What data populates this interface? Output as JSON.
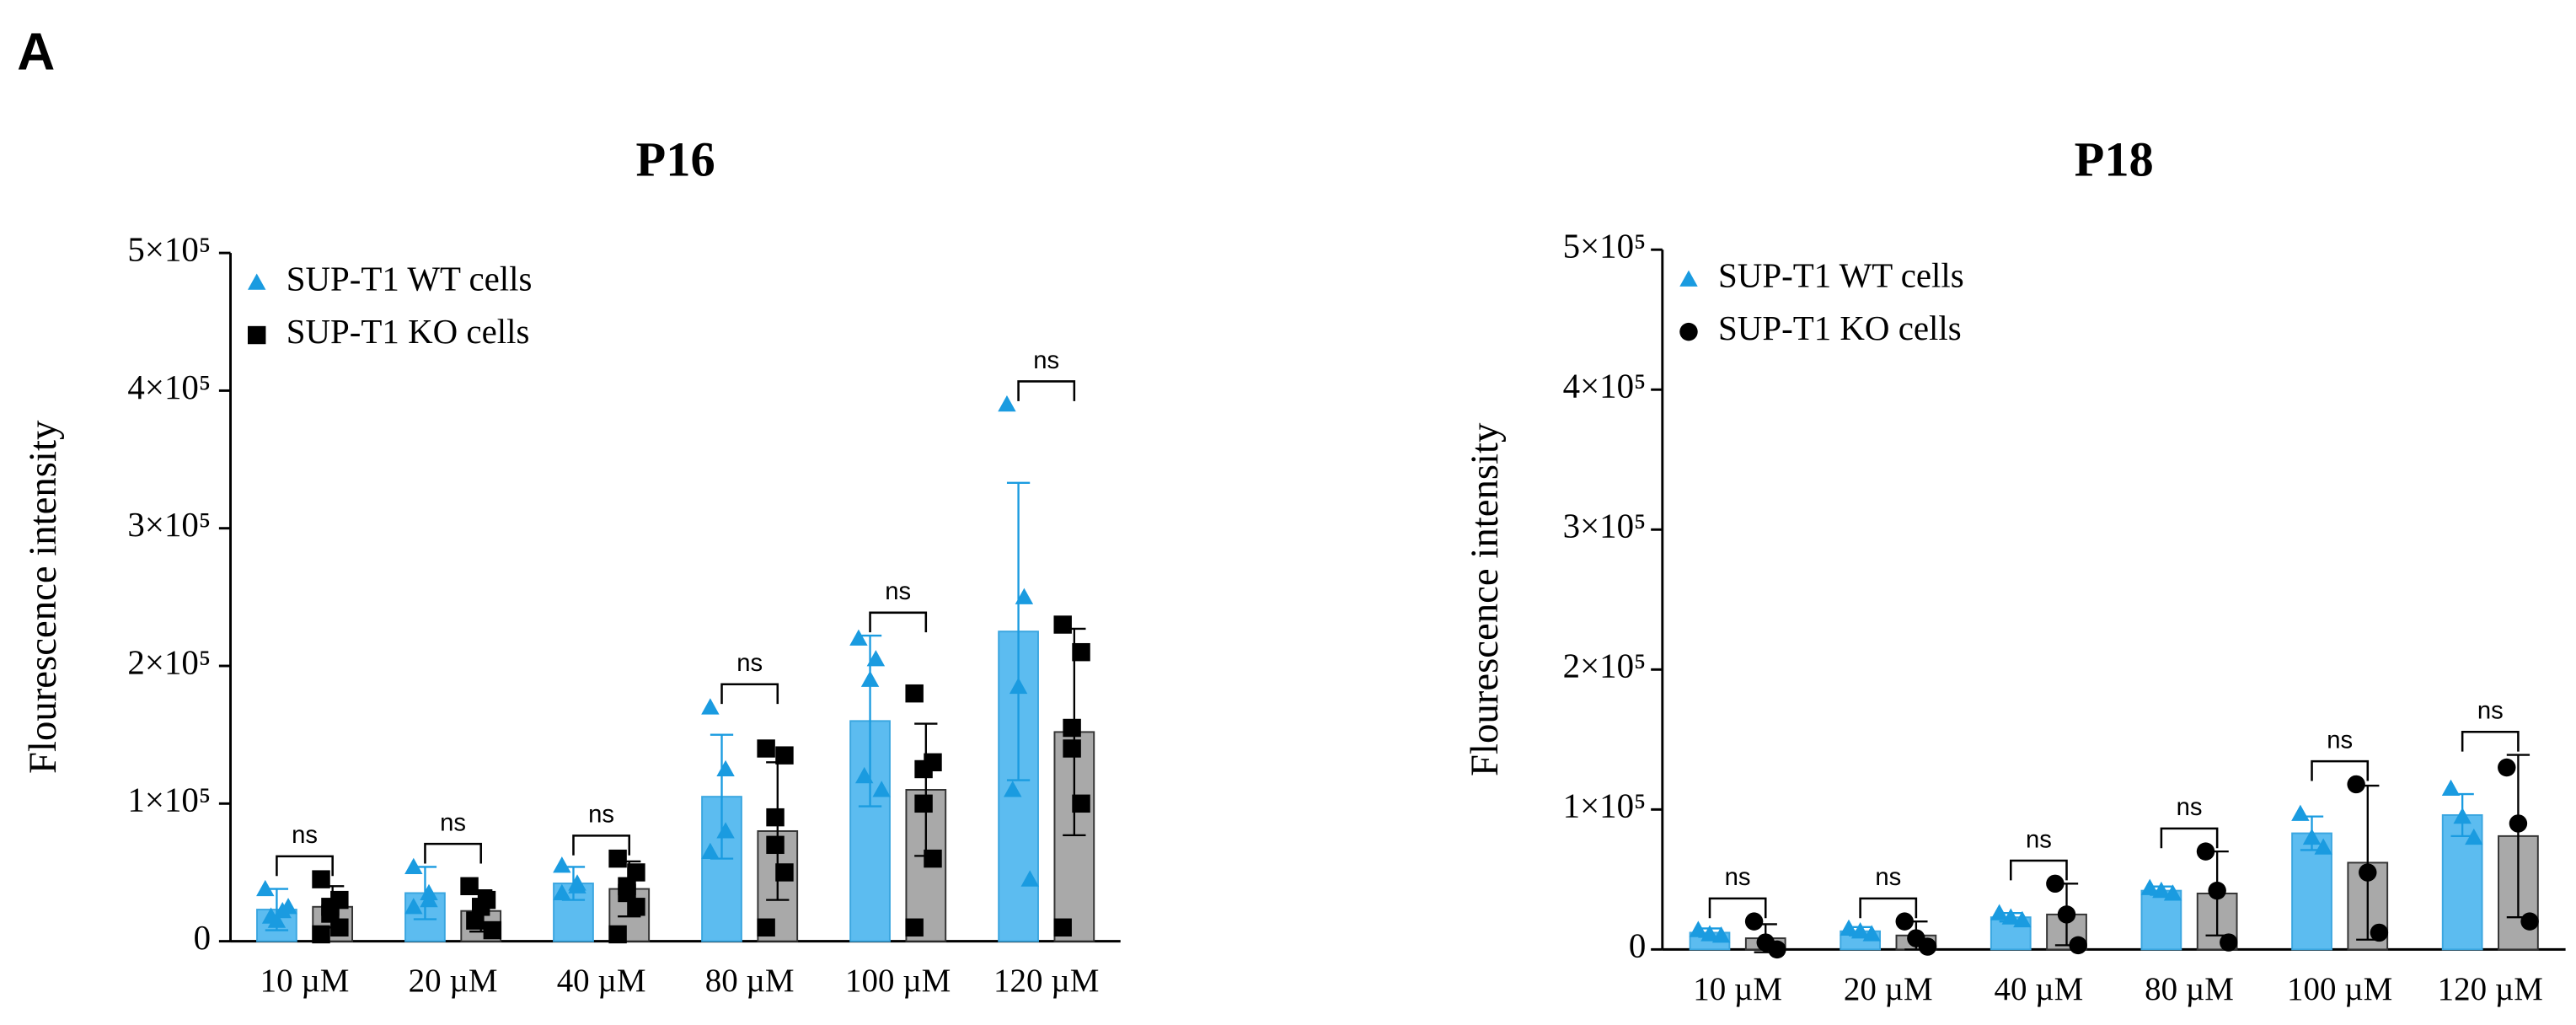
{
  "panel_label": "A",
  "chart_data": [
    {
      "type": "bar",
      "title": "P16",
      "y_label": "Flourescence intensity",
      "categories": [
        "10 µM",
        "20 µM",
        "40 µM",
        "80 µM",
        "100 µM",
        "120 µM"
      ],
      "ylim": [
        0,
        500000
      ],
      "yticks": [
        0,
        {
          "value": 100000,
          "label": "1×10⁵"
        },
        {
          "value": 200000,
          "label": "2×10⁵"
        },
        {
          "value": 300000,
          "label": "3×10⁵"
        },
        {
          "value": 400000,
          "label": "4×10⁵"
        },
        {
          "value": 500000,
          "label": "5×10⁵"
        }
      ],
      "annotations": [
        "ns",
        "ns",
        "ns",
        "ns",
        "ns",
        "ns"
      ],
      "legend": "upper left",
      "series": [
        {
          "name": "SUP-T1 WT cells",
          "color": "#5cbcf0",
          "point_color": "#1a9be0",
          "marker": "triangle",
          "values": [
            23000,
            35000,
            42000,
            105000,
            160000,
            225000
          ],
          "errors": [
            15000,
            19000,
            12000,
            45000,
            62000,
            108000
          ],
          "points": [
            [
              38000,
              22000,
              15000,
              18000,
              25000
            ],
            [
              54000,
              35000,
              30000,
              25000
            ],
            [
              55000,
              42000,
              40000,
              35000
            ],
            [
              170000,
              125000,
              80000,
              65000
            ],
            [
              220000,
              205000,
              190000,
              120000,
              110000
            ],
            [
              390000,
              250000,
              185000,
              110000,
              45000
            ]
          ]
        },
        {
          "name": "SUP-T1 KO cells",
          "color": "#a9a9a9",
          "point_color": "#000000",
          "marker": "square",
          "values": [
            25000,
            22000,
            38000,
            80000,
            110000,
            152000
          ],
          "errors": [
            15000,
            15000,
            20000,
            50000,
            48000,
            75000
          ],
          "points": [
            [
              45000,
              30000,
              25000,
              20000,
              10000,
              5000
            ],
            [
              40000,
              30000,
              25000,
              15000,
              8000
            ],
            [
              60000,
              50000,
              40000,
              35000,
              25000,
              5000
            ],
            [
              140000,
              135000,
              90000,
              70000,
              50000,
              10000
            ],
            [
              180000,
              130000,
              125000,
              100000,
              60000,
              10000
            ],
            [
              230000,
              210000,
              155000,
              140000,
              100000,
              10000
            ]
          ]
        }
      ]
    },
    {
      "type": "bar",
      "title": "P18",
      "y_label": "Flourescence intensity",
      "categories": [
        "10 µM",
        "20 µM",
        "40 µM",
        "80 µM",
        "100 µM",
        "120 µM"
      ],
      "ylim": [
        0,
        500000
      ],
      "yticks": [
        0,
        {
          "value": 100000,
          "label": "1×10⁵"
        },
        {
          "value": 200000,
          "label": "2×10⁵"
        },
        {
          "value": 300000,
          "label": "3×10⁵"
        },
        {
          "value": 400000,
          "label": "4×10⁵"
        },
        {
          "value": 500000,
          "label": "5×10⁵"
        }
      ],
      "annotations": [
        "ns",
        "ns",
        "ns",
        "ns",
        "ns",
        "ns"
      ],
      "legend": "upper left",
      "series": [
        {
          "name": "SUP-T1 WT cells",
          "color": "#5cbcf0",
          "point_color": "#1a9be0",
          "marker": "triangle",
          "values": [
            12000,
            13000,
            23000,
            42000,
            83000,
            96000
          ],
          "errors": [
            3000,
            3000,
            3000,
            3000,
            12000,
            15000
          ],
          "points": [
            [
              14000,
              11000,
              10000
            ],
            [
              15000,
              13000,
              11000
            ],
            [
              26000,
              23000,
              21000
            ],
            [
              44000,
              42000,
              40000
            ],
            [
              97000,
              80000,
              73000
            ],
            [
              115000,
              95000,
              80000
            ]
          ]
        },
        {
          "name": "SUP-T1 KO cells",
          "color": "#a9a9a9",
          "point_color": "#000000",
          "marker": "circle",
          "values": [
            8000,
            10000,
            25000,
            40000,
            62000,
            81000
          ],
          "errors": [
            10000,
            10000,
            22000,
            30000,
            55000,
            58000
          ],
          "points": [
            [
              20000,
              5000,
              0
            ],
            [
              20000,
              8000,
              2000
            ],
            [
              47000,
              25000,
              3000
            ],
            [
              70000,
              42000,
              5000
            ],
            [
              118000,
              55000,
              12000
            ],
            [
              130000,
              90000,
              20000
            ]
          ]
        }
      ]
    }
  ]
}
